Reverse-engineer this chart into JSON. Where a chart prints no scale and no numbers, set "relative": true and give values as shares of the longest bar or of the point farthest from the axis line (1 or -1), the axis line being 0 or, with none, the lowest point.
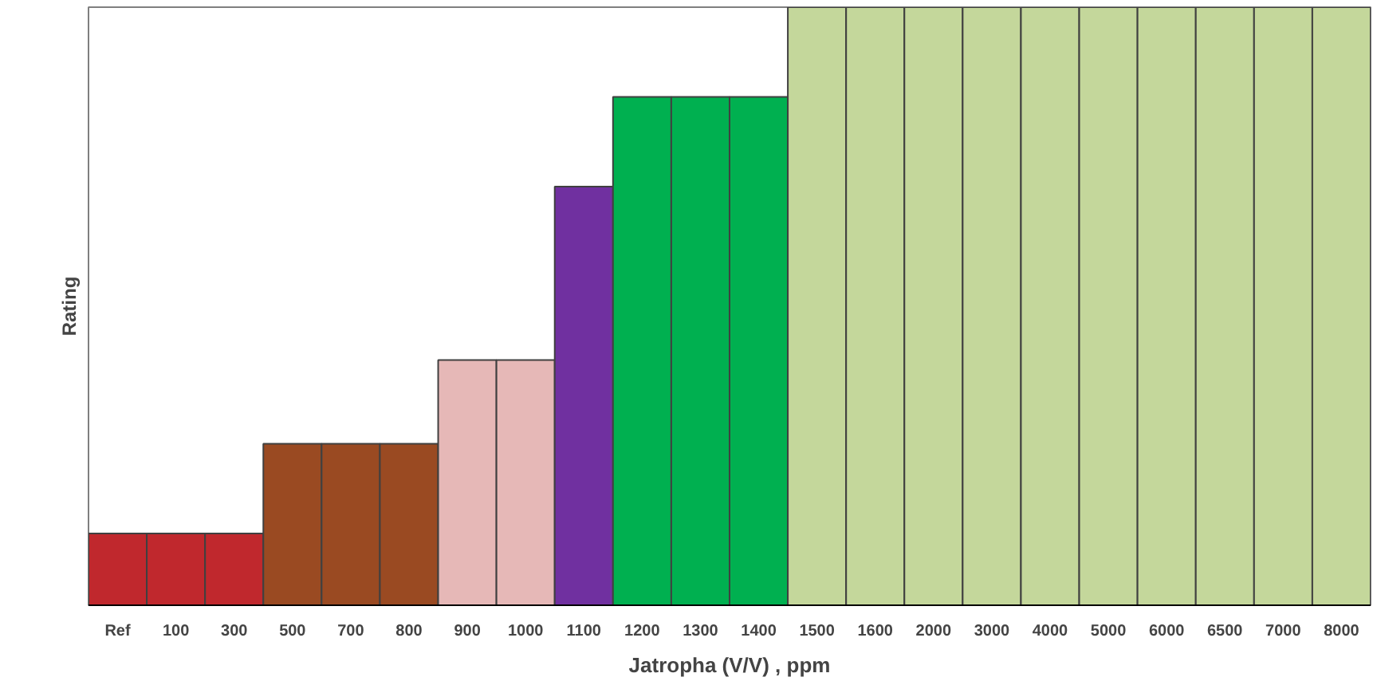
{
  "chart_data": {
    "type": "bar",
    "relative": true,
    "xlabel": "Jatropha (V/V) , ppm",
    "ylabel": "Rating",
    "grid": false,
    "categories": [
      "Ref",
      "100",
      "300",
      "500",
      "700",
      "800",
      "900",
      "1000",
      "1100",
      "1200",
      "1300",
      "1400",
      "1500",
      "1600",
      "2000",
      "3000",
      "4000",
      "5000",
      "6000",
      "6500",
      "7000",
      "8000"
    ],
    "values": [
      0.12,
      0.12,
      0.12,
      0.27,
      0.27,
      0.27,
      0.41,
      0.41,
      0.7,
      0.85,
      0.85,
      0.85,
      1,
      1,
      1,
      1,
      1,
      1,
      1,
      1,
      1,
      1
    ],
    "colors": [
      "#c0282d",
      "#c0282d",
      "#c0282d",
      "#9a4a22",
      "#9a4a22",
      "#9a4a22",
      "#e6b8b7",
      "#e6b8b7",
      "#7030a0",
      "#00b050",
      "#00b050",
      "#00b050",
      "#c4d79b",
      "#c4d79b",
      "#c4d79b",
      "#c4d79b",
      "#c4d79b",
      "#c4d79b",
      "#c4d79b",
      "#c4d79b",
      "#c4d79b",
      "#c4d79b"
    ]
  }
}
